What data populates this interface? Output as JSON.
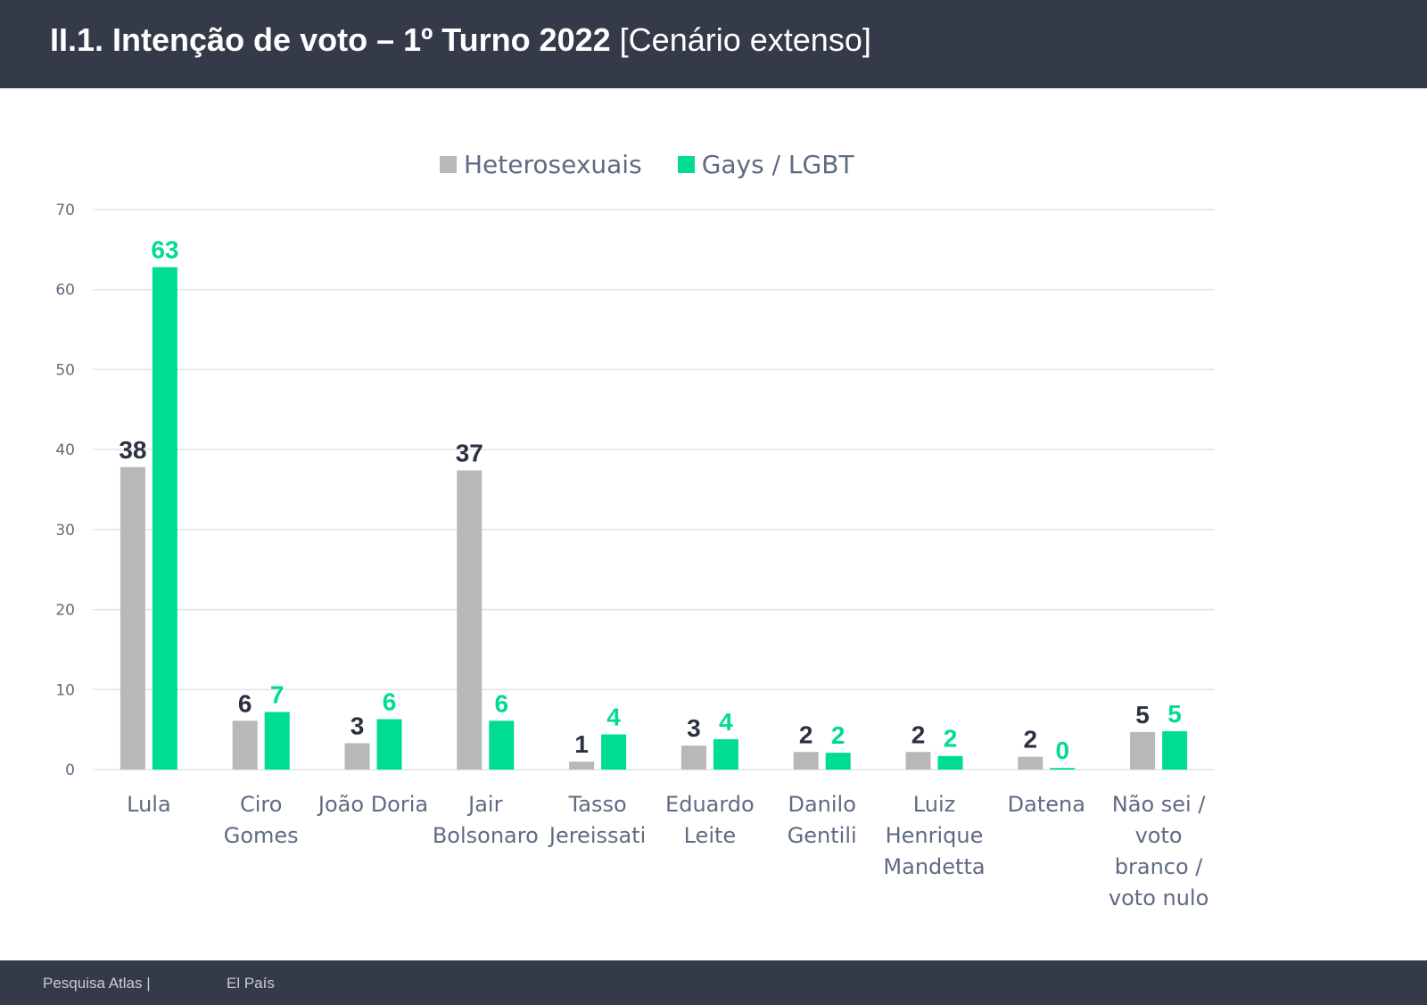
{
  "header": {
    "title_bold": "II.1. Intenção de voto – 1º Turno 2022",
    "title_light": "[Cenário extenso]"
  },
  "footer": {
    "source_left": "Pesquisa Atlas  |",
    "source_right": "El País"
  },
  "colors": {
    "header_bg": "#343a47",
    "hetero": "#b8b8b8",
    "lgbt": "#00dc93",
    "hetero_label": "#2b3140",
    "lgbt_label": "#00dc93",
    "axis_text": "#5f6b82",
    "grid": "#dfe3e8"
  },
  "chart_data": {
    "type": "bar",
    "categories": [
      [
        "Lula"
      ],
      [
        "Ciro",
        "Gomes"
      ],
      [
        "João Doria"
      ],
      [
        "Jair",
        "Bolsonaro"
      ],
      [
        "Tasso",
        "Jereissati"
      ],
      [
        "Eduardo",
        "Leite"
      ],
      [
        "Danilo",
        "Gentili"
      ],
      [
        "Luiz",
        "Henrique",
        "Mandetta"
      ],
      [
        "Datena"
      ],
      [
        "Não sei /",
        "voto",
        "branco /",
        "voto nulo"
      ]
    ],
    "series": [
      {
        "name": "Heterosexuais",
        "values": [
          37.8,
          6.1,
          3.3,
          37.4,
          1.0,
          3.0,
          2.2,
          2.2,
          1.6,
          4.7
        ],
        "labels": [
          "38",
          "6",
          "3",
          "37",
          "1",
          "3",
          "2",
          "2",
          "2",
          "5"
        ]
      },
      {
        "name": "Gays / LGBT",
        "values": [
          62.8,
          7.2,
          6.3,
          6.1,
          4.4,
          3.8,
          2.1,
          1.7,
          0.2,
          4.8
        ],
        "labels": [
          "63",
          "7",
          "6",
          "6",
          "4",
          "4",
          "2",
          "2",
          "0",
          "5"
        ]
      }
    ],
    "yticks": [
      "0",
      "10",
      "20",
      "30",
      "40",
      "50",
      "60",
      "70"
    ],
    "ylim": [
      0,
      70
    ],
    "grid": true,
    "legend": "top-center",
    "title": "",
    "xlabel": "",
    "ylabel": ""
  }
}
